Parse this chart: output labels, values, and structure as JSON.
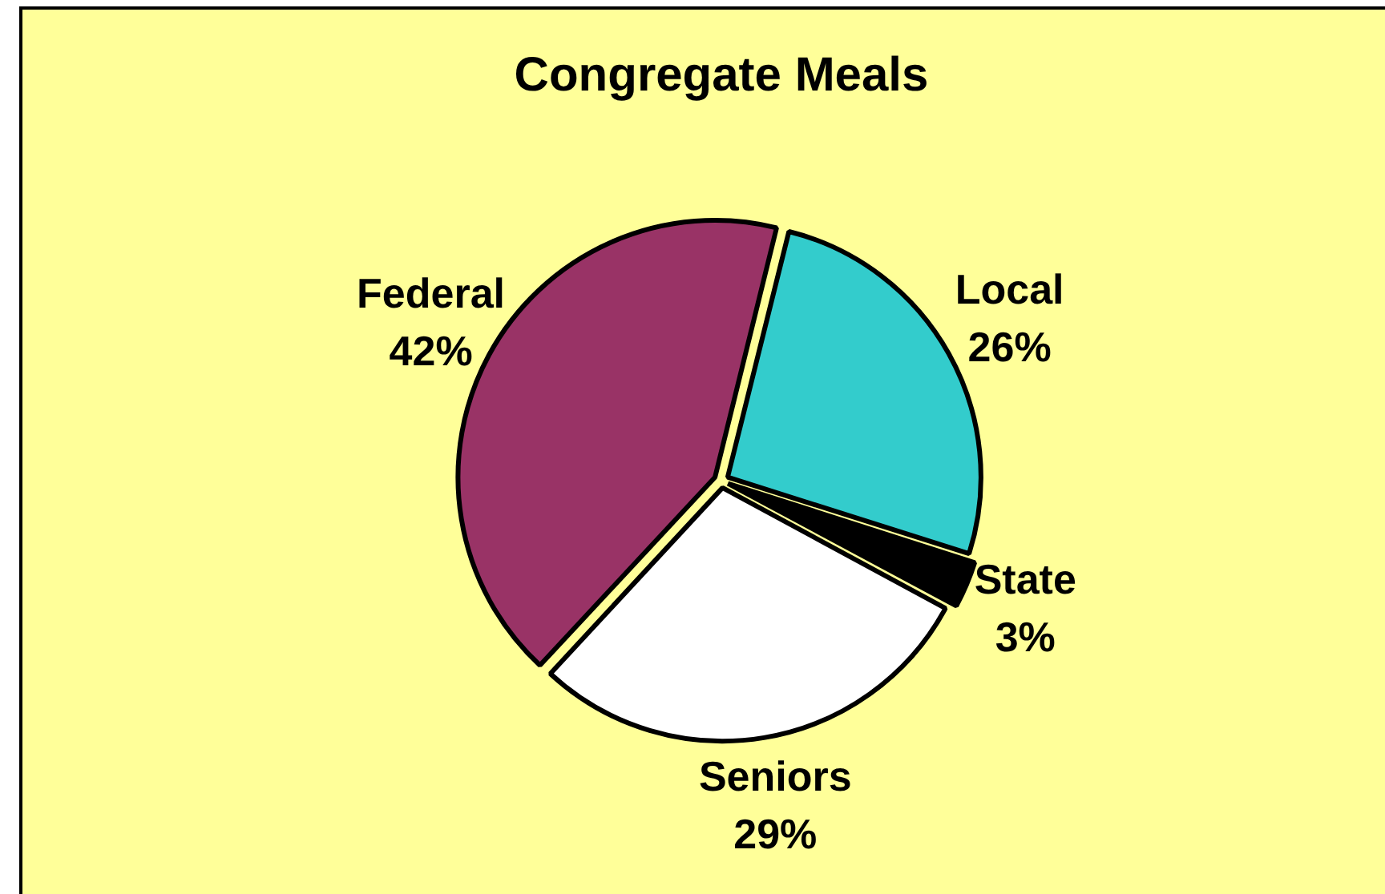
{
  "chart_data": {
    "type": "pie",
    "title": "Congregate Meals",
    "categories": [
      "Local",
      "State",
      "Seniors",
      "Federal"
    ],
    "values": [
      26,
      3,
      29,
      42
    ],
    "value_labels": [
      "26%",
      "3%",
      "29%",
      "42%"
    ],
    "colors": [
      "#33cccc",
      "#000000",
      "#ffffff",
      "#993366"
    ],
    "legend": false
  }
}
